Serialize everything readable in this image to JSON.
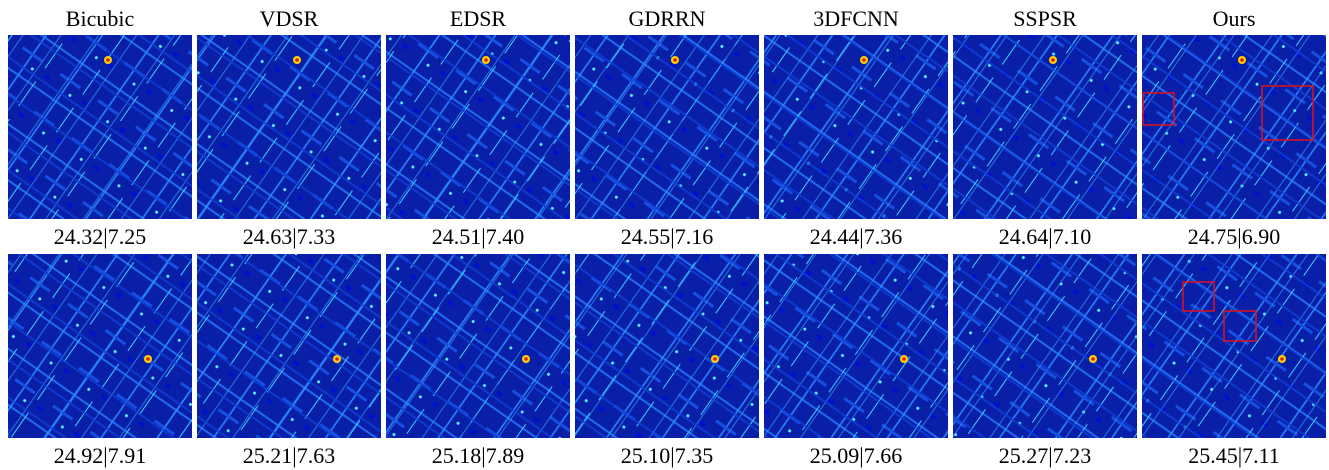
{
  "columns": [
    "Bicubic",
    "VDSR",
    "EDSR",
    "GDRRN",
    "3DFCNN",
    "SSPSR",
    "Ours"
  ],
  "rows": [
    [
      "24.32|7.25",
      "24.63|7.33",
      "24.51|7.40",
      "24.55|7.16",
      "24.44|7.36",
      "24.64|7.10",
      "24.75|6.90"
    ],
    [
      "24.92|7.91",
      "25.21|7.63",
      "25.18|7.89",
      "25.10|7.35",
      "25.09|7.66",
      "25.27|7.23",
      "25.45|7.11"
    ]
  ]
}
